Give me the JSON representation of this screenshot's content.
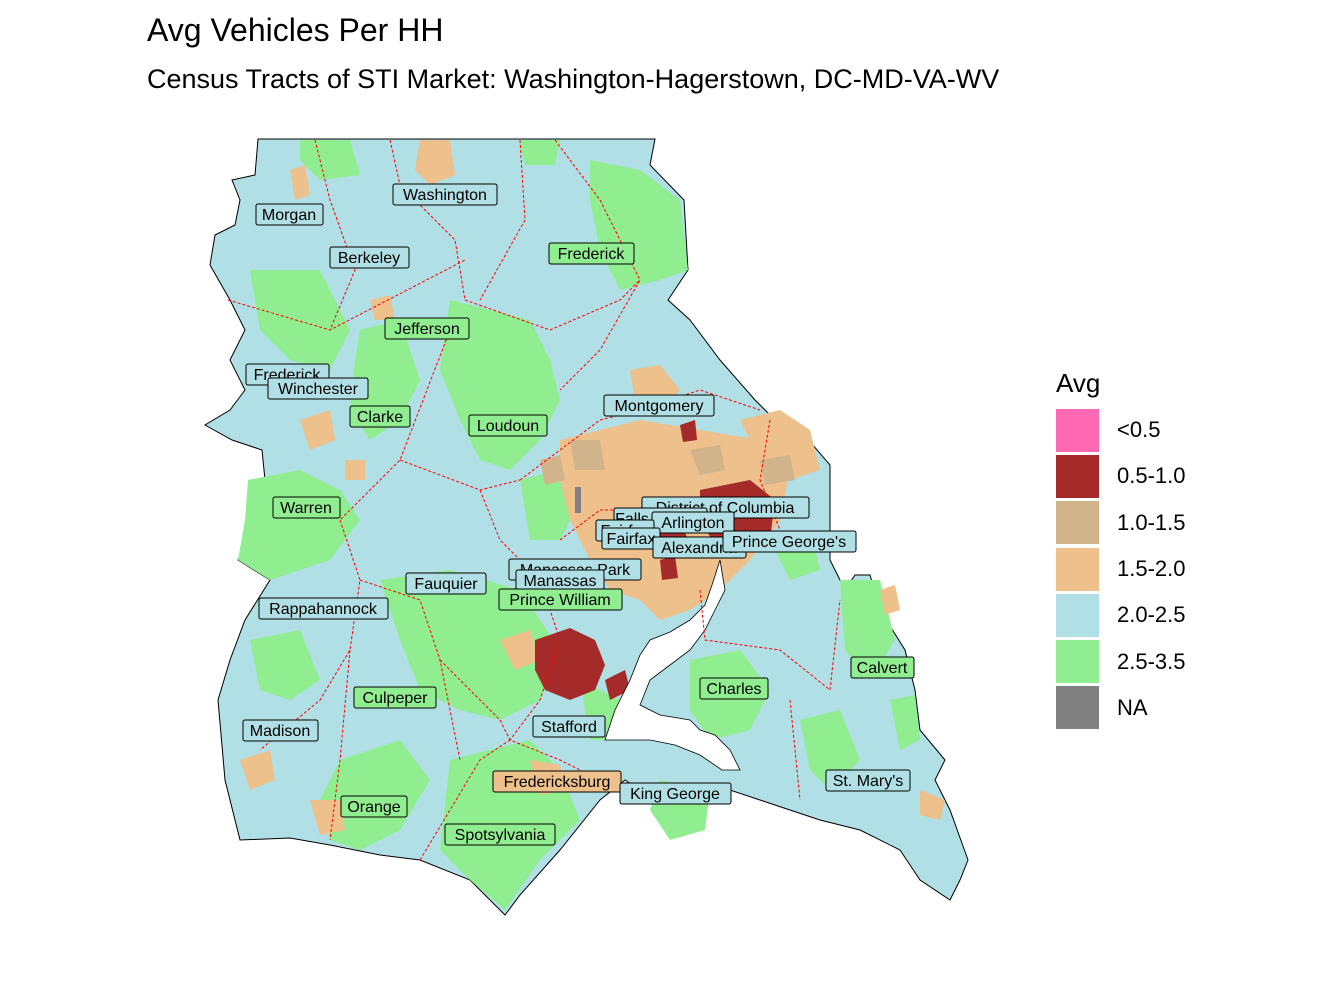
{
  "title": "Avg Vehicles Per HH",
  "subtitle": "Census Tracts of STI Market: Washington-Hagerstown, DC-MD-VA-WV",
  "legend": {
    "title": "Avg",
    "items": [
      {
        "label": "<0.5",
        "color": "#ff69b4"
      },
      {
        "label": "0.5-1.0",
        "color": "#a52a2a"
      },
      {
        "label": "1.0-1.5",
        "color": "#d2b48c"
      },
      {
        "label": "1.5-2.0",
        "color": "#eec08c"
      },
      {
        "label": "2.0-2.5",
        "color": "#b0dfe5"
      },
      {
        "label": "2.5-3.5",
        "color": "#90ee90"
      },
      {
        "label": "NA",
        "color": "#808080"
      }
    ]
  },
  "counties": [
    "Washington",
    "Morgan",
    "Berkeley",
    "Frederick",
    "Jefferson",
    "Frederick",
    "Winchester",
    "Clarke",
    "Loudoun",
    "Montgomery",
    "District of Columbia",
    "Falls Church",
    "Arlington",
    "Fairfax",
    "Fairfax",
    "Alexandria",
    "Prince George's",
    "Warren",
    "Manassas Park",
    "Manassas",
    "Fauquier",
    "Prince William",
    "Rappahannock",
    "Calvert",
    "Charles",
    "Culpeper",
    "Madison",
    "Stafford",
    "St. Mary's",
    "Fredericksburg",
    "King George",
    "Orange",
    "Spotsylvania"
  ]
}
